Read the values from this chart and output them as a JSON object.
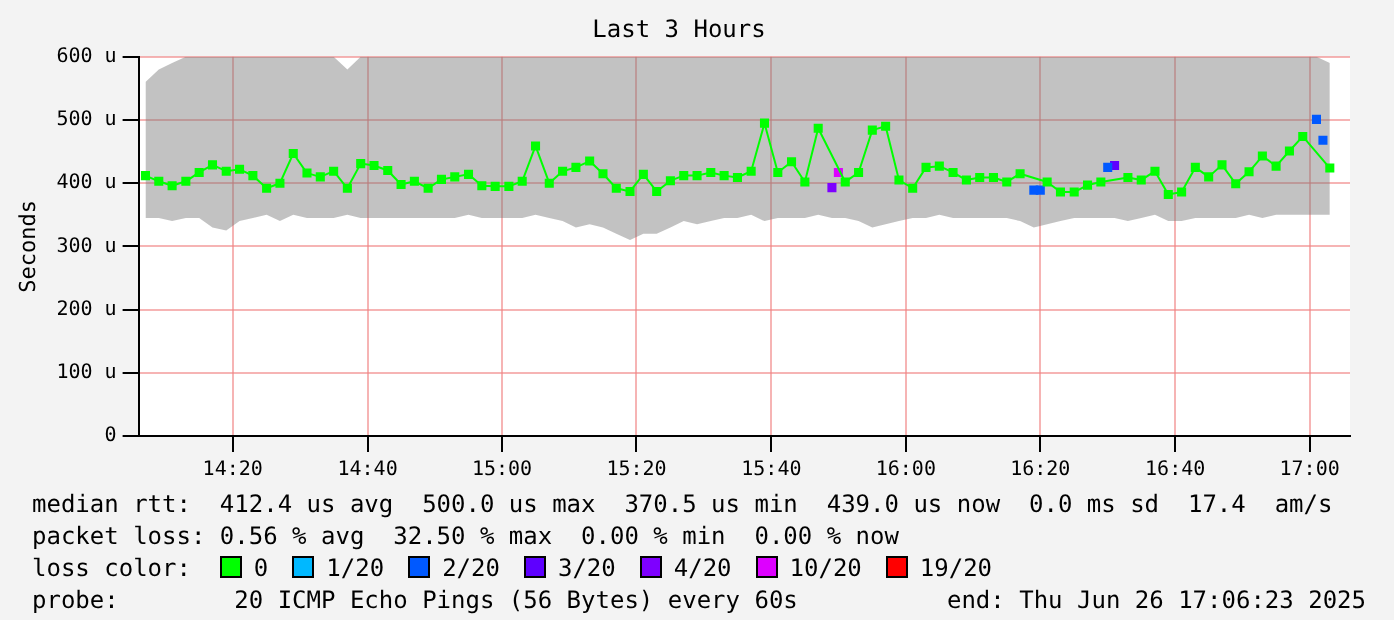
{
  "chart_data": {
    "type": "line",
    "title": "Last 3 Hours",
    "ylabel": "Seconds",
    "legend_title": "loss color:",
    "legend": "bottom",
    "grid": true,
    "marker": "square",
    "xlim": [
      14.1,
      17.1
    ],
    "xticks": [
      {
        "value": 14.333,
        "label": "14:20"
      },
      {
        "value": 14.667,
        "label": "14:40"
      },
      {
        "value": 15,
        "label": "15:00"
      },
      {
        "value": 15.333,
        "label": "15:20"
      },
      {
        "value": 15.667,
        "label": "15:40"
      },
      {
        "value": 16,
        "label": "16:00"
      },
      {
        "value": 16.333,
        "label": "16:20"
      },
      {
        "value": 16.667,
        "label": "16:40"
      },
      {
        "value": 17,
        "label": "17:00"
      }
    ],
    "ylim": [
      0,
      600
    ],
    "yticks": [
      0,
      {
        "value": 100,
        "label": "100 u"
      },
      {
        "value": 200,
        "label": "200 u"
      },
      {
        "value": 300,
        "label": "300 u"
      },
      {
        "value": 400,
        "label": "400 u"
      },
      {
        "value": 500,
        "label": "500 u"
      },
      {
        "value": 600,
        "label": "600 u"
      }
    ],
    "x": [
      14.117,
      14.15,
      14.183,
      14.217,
      14.25,
      14.283,
      14.317,
      14.35,
      14.383,
      14.417,
      14.45,
      14.483,
      14.517,
      14.55,
      14.583,
      14.617,
      14.65,
      14.683,
      14.717,
      14.75,
      14.783,
      14.817,
      14.85,
      14.883,
      14.917,
      14.95,
      14.983,
      15.017,
      15.05,
      15.083,
      15.117,
      15.15,
      15.183,
      15.217,
      15.25,
      15.283,
      15.317,
      15.35,
      15.383,
      15.417,
      15.45,
      15.483,
      15.517,
      15.55,
      15.583,
      15.617,
      15.65,
      15.683,
      15.717,
      15.75,
      15.783,
      15.817,
      15.85,
      15.883,
      15.917,
      15.95,
      15.983,
      16.017,
      16.05,
      16.083,
      16.117,
      16.15,
      16.183,
      16.217,
      16.25,
      16.283,
      16.317,
      16.35,
      16.383,
      16.417,
      16.45,
      16.483,
      16.517,
      16.55,
      16.583,
      16.617,
      16.65,
      16.683,
      16.717,
      16.75,
      16.783,
      16.817,
      16.85,
      16.883,
      16.917,
      16.95,
      16.983,
      17.017,
      17.05
    ],
    "series": [
      {
        "name": "0",
        "color": "#00ff00",
        "values": [
          412,
          403,
          396,
          403,
          417,
          429,
          419,
          422,
          412,
          392,
          400,
          447,
          416,
          410,
          419,
          392,
          431,
          428,
          420,
          398,
          403,
          392,
          406,
          410,
          414,
          396,
          395,
          395,
          403,
          459,
          400,
          419,
          425,
          435,
          415,
          392,
          387,
          414,
          387,
          404,
          412,
          412,
          417,
          412,
          409,
          419,
          495,
          417,
          434,
          402,
          487,
          null,
          402,
          417,
          484,
          490,
          405,
          392,
          425,
          427,
          417,
          405,
          409,
          409,
          402,
          415,
          null,
          402,
          386,
          386,
          397,
          402,
          null,
          409,
          405,
          419,
          382,
          386,
          425,
          410,
          429,
          399,
          418,
          443,
          427,
          451,
          474,
          null,
          424
        ],
        "lower": [
          345,
          345,
          340,
          345,
          345,
          330,
          325,
          340,
          345,
          350,
          340,
          350,
          345,
          345,
          345,
          350,
          345,
          345,
          345,
          345,
          345,
          345,
          345,
          345,
          350,
          345,
          345,
          345,
          345,
          350,
          345,
          340,
          330,
          335,
          330,
          320,
          310,
          320,
          320,
          330,
          340,
          335,
          340,
          345,
          345,
          350,
          340,
          345,
          345,
          345,
          350,
          345,
          345,
          340,
          330,
          335,
          340,
          345,
          345,
          350,
          345,
          345,
          345,
          345,
          345,
          340,
          330,
          335,
          340,
          345,
          345,
          345,
          345,
          340,
          345,
          350,
          340,
          340,
          345,
          345,
          345,
          345,
          350,
          345,
          350,
          350,
          350,
          350,
          350
        ],
        "upper": [
          560,
          580,
          590,
          600,
          600,
          600,
          600,
          600,
          600,
          600,
          600,
          600,
          600,
          600,
          600,
          580,
          600,
          600,
          600,
          600,
          600,
          600,
          600,
          600,
          600,
          600,
          600,
          600,
          600,
          600,
          600,
          600,
          600,
          600,
          600,
          600,
          600,
          600,
          600,
          600,
          600,
          600,
          600,
          600,
          600,
          600,
          600,
          600,
          600,
          600,
          600,
          600,
          600,
          600,
          600,
          600,
          600,
          600,
          600,
          600,
          600,
          600,
          600,
          600,
          600,
          600,
          600,
          600,
          600,
          600,
          600,
          600,
          600,
          600,
          600,
          600,
          600,
          600,
          600,
          600,
          600,
          600,
          600,
          600,
          600,
          600,
          600,
          600,
          590
        ]
      },
      {
        "name": "1/20",
        "color": "#00b8ff",
        "type": "scatter",
        "values": [
          null,
          null,
          null,
          null,
          null,
          null,
          null,
          null,
          null,
          null,
          null,
          null,
          null,
          null,
          null,
          null,
          null,
          null,
          null,
          null,
          null,
          null,
          null,
          null,
          null,
          null,
          null,
          null,
          null,
          null,
          null,
          null,
          null,
          null,
          null,
          null,
          null,
          null,
          null,
          null,
          null,
          null,
          null,
          null,
          null,
          null,
          null,
          null,
          null,
          null,
          null,
          null,
          null,
          null,
          null,
          null,
          null,
          null,
          null,
          null,
          null,
          null,
          null,
          null,
          null,
          null,
          null,
          null,
          null,
          null,
          null,
          null,
          null,
          null,
          null,
          null,
          null,
          null,
          null,
          null,
          null,
          null,
          null,
          null,
          null,
          null,
          null,
          null,
          null
        ]
      },
      {
        "name": "2/20",
        "color": "#0059ff",
        "type": "scatter",
        "x": [
          16.317,
          16.333,
          16.5,
          17.017,
          17.033
        ],
        "values": [
          389,
          389,
          425,
          501,
          468
        ]
      },
      {
        "name": "3/20",
        "color": "#5e00ff",
        "type": "scatter",
        "x": [
          16.517
        ],
        "values": [
          428
        ]
      },
      {
        "name": "4/20",
        "color": "#7e00ff",
        "type": "scatter",
        "x": [
          15.817
        ],
        "values": [
          393
        ]
      },
      {
        "name": "10/20",
        "color": "#dd00ff",
        "type": "scatter",
        "x": [
          15.833
        ],
        "values": [
          417
        ]
      },
      {
        "name": "19/20",
        "color": "#ff0000",
        "type": "scatter",
        "values": [
          null,
          null,
          null,
          null,
          null,
          null,
          null,
          null,
          null,
          null,
          null,
          null,
          null,
          null,
          null,
          null,
          null,
          null,
          null,
          null,
          null,
          null,
          null,
          null,
          null,
          null,
          null,
          null,
          null,
          null,
          null,
          null,
          null,
          null,
          null,
          null,
          null,
          null,
          null,
          null,
          null,
          null,
          null,
          null,
          null,
          null,
          null,
          null,
          null,
          null,
          null,
          null,
          null,
          null,
          null,
          null,
          null,
          null,
          null,
          null,
          null,
          null,
          null,
          null,
          null,
          null,
          null,
          null,
          null,
          null,
          null,
          null,
          null,
          null,
          null,
          null,
          null,
          null,
          null,
          null,
          null,
          null,
          null,
          null,
          null,
          null,
          null,
          null,
          null
        ]
      }
    ],
    "annotations": [
      "median rtt:  412.4 us avg  500.0 us max  370.5 us min  439.0 us now  0.0 ms sd  17.4  am/s",
      "packet loss: 0.56 % avg  32.50 % max  0.00 % min  0.00 % now",
      "probe:        20 ICMP Echo Pings (56 Bytes) every 60s",
      "end: Thu Jun 26 17:06:23 2025"
    ]
  }
}
